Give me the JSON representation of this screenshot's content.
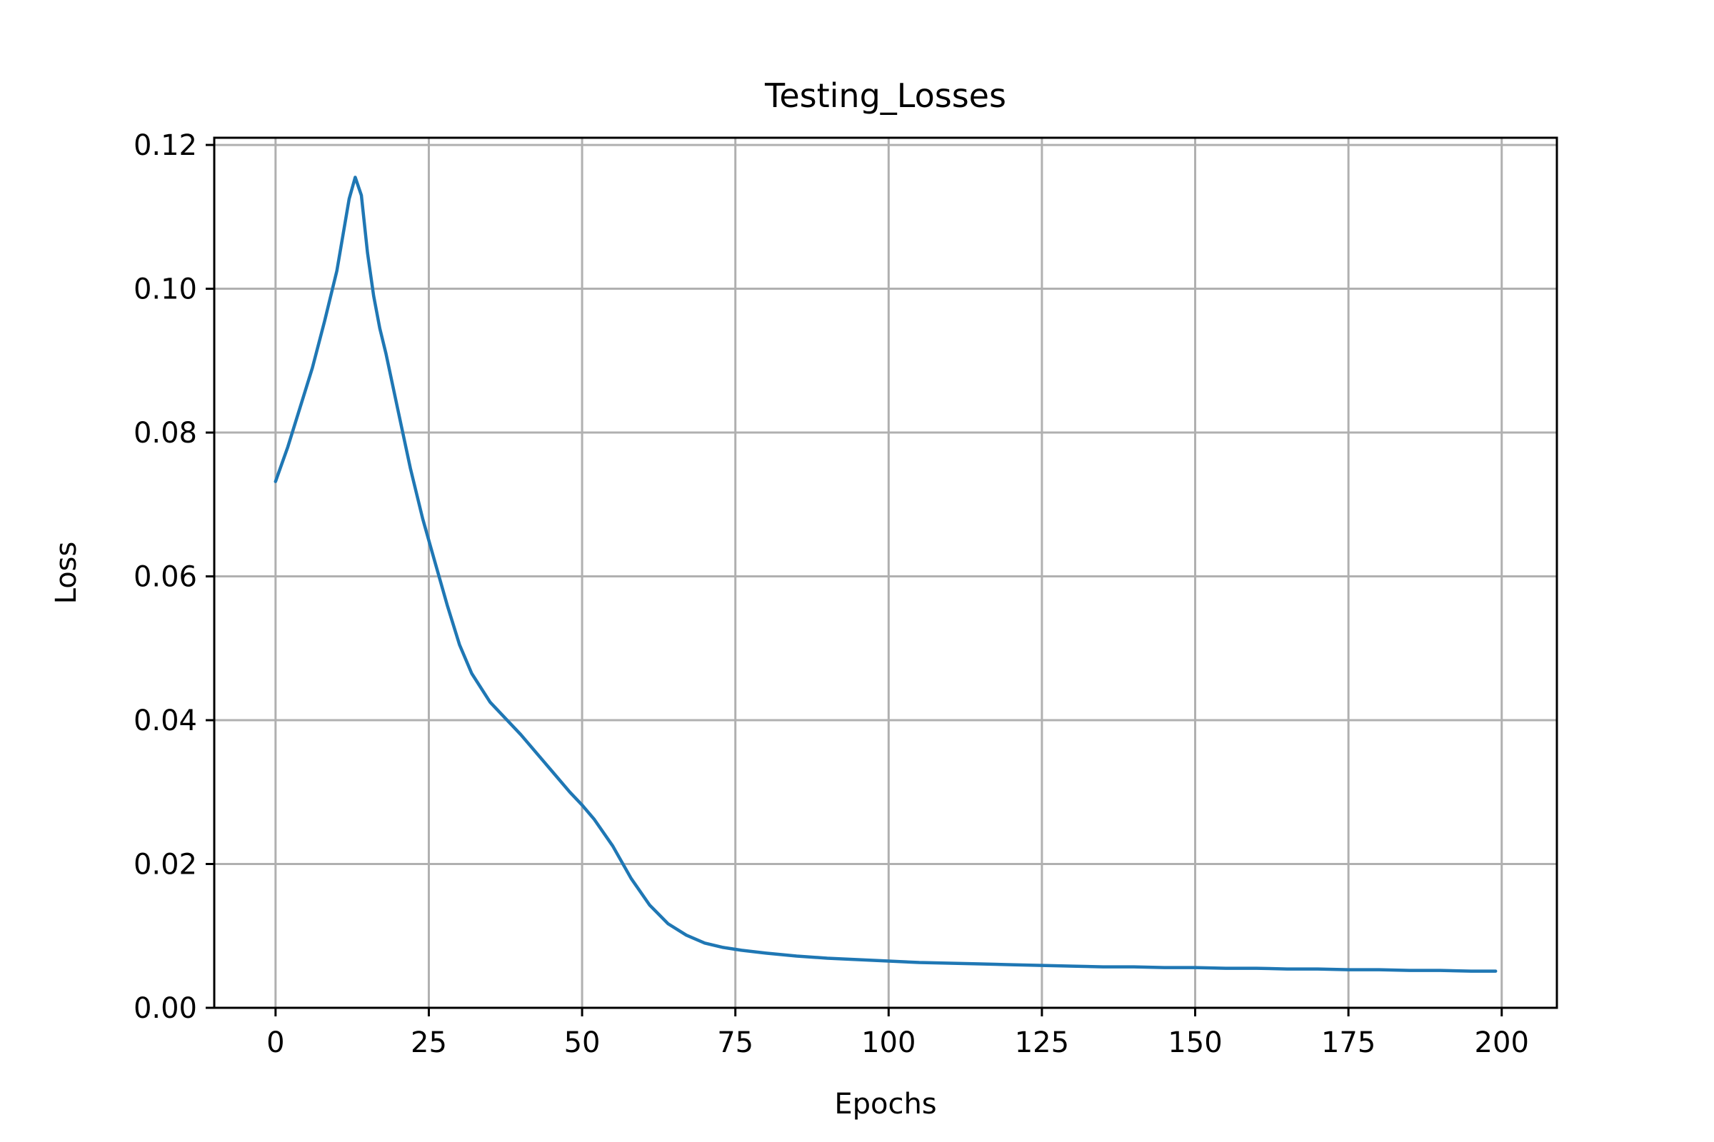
{
  "chart_data": {
    "type": "line",
    "title": "Testing_Losses",
    "xlabel": "Epochs",
    "ylabel": "Loss",
    "xlim": [
      -10,
      209
    ],
    "ylim": [
      0,
      0.121
    ],
    "xticks": [
      0,
      25,
      50,
      75,
      100,
      125,
      150,
      175,
      200
    ],
    "xtick_labels": [
      "0",
      "25",
      "50",
      "75",
      "100",
      "125",
      "150",
      "175",
      "200"
    ],
    "yticks": [
      0.0,
      0.02,
      0.04,
      0.06,
      0.08,
      0.1,
      0.12
    ],
    "ytick_labels": [
      "0.00",
      "0.02",
      "0.04",
      "0.06",
      "0.08",
      "0.10",
      "0.12"
    ],
    "grid": true,
    "colors": {
      "series": "#1f77b4",
      "grid": "#b0b0b0",
      "axes": "#000000"
    },
    "series": [
      {
        "x": [
          0,
          2,
          4,
          6,
          8,
          10,
          11,
          12,
          13,
          14,
          15,
          16,
          17,
          18,
          20,
          22,
          24,
          26,
          28,
          30,
          32,
          35,
          40,
          45,
          48,
          50,
          52,
          55,
          58,
          61,
          64,
          67,
          70,
          73,
          76,
          80,
          85,
          90,
          95,
          100,
          105,
          110,
          115,
          120,
          125,
          130,
          135,
          140,
          145,
          150,
          155,
          160,
          165,
          170,
          175,
          180,
          185,
          190,
          195,
          199
        ],
        "y": [
          0.0732,
          0.078,
          0.0835,
          0.089,
          0.0955,
          0.1025,
          0.1075,
          0.1125,
          0.1155,
          0.113,
          0.105,
          0.099,
          0.0945,
          0.091,
          0.083,
          0.075,
          0.068,
          0.062,
          0.056,
          0.0505,
          0.0465,
          0.0425,
          0.038,
          0.033,
          0.03,
          0.0282,
          0.0262,
          0.0225,
          0.018,
          0.0143,
          0.0117,
          0.0101,
          0.009,
          0.0084,
          0.008,
          0.0076,
          0.0072,
          0.0069,
          0.0067,
          0.0065,
          0.0063,
          0.0062,
          0.0061,
          0.006,
          0.0059,
          0.0058,
          0.0057,
          0.0057,
          0.0056,
          0.0056,
          0.0055,
          0.0055,
          0.0054,
          0.0054,
          0.0053,
          0.0053,
          0.0052,
          0.0052,
          0.0051,
          0.0051
        ]
      }
    ]
  }
}
